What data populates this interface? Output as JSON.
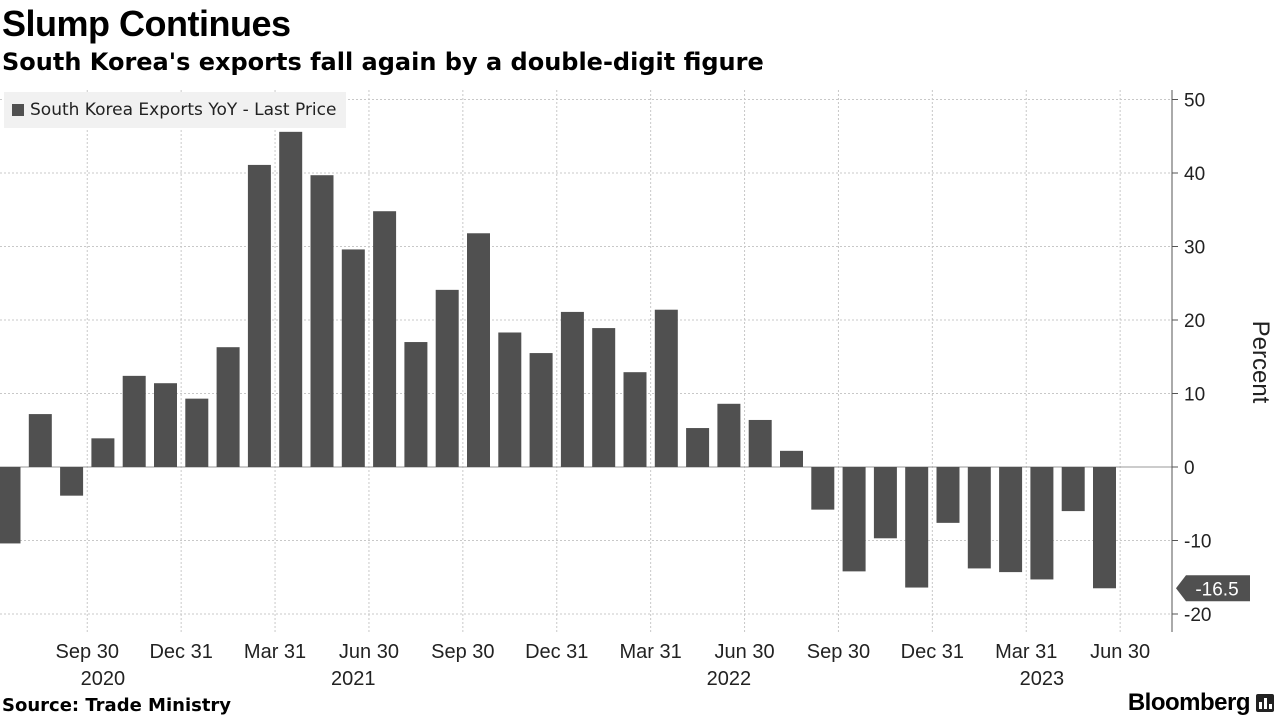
{
  "title": "Slump Continues",
  "subtitle": "South Korea's exports fall again by a double-digit figure",
  "source": "Source: Trade Ministry",
  "brand": "Bloomberg",
  "colors": {
    "bar": "#505050",
    "grid": "#c8c8c8",
    "axis": "#555555",
    "callout": "#505050"
  },
  "chart_data": {
    "type": "bar",
    "ylabel": "Percent",
    "ylim": [
      -22,
      52
    ],
    "yticks": [
      50,
      40,
      30,
      20,
      10,
      0,
      -10,
      -20
    ],
    "y_axis_position": "right",
    "grid": true,
    "legend": "top-left",
    "series": [
      {
        "name": "South Korea Exports YoY - Last Price",
        "values": [
          -10.4,
          7.2,
          -3.9,
          3.9,
          12.4,
          11.4,
          9.3,
          16.3,
          41.1,
          45.6,
          39.7,
          29.6,
          34.8,
          17.0,
          24.1,
          31.8,
          18.3,
          15.5,
          21.1,
          18.9,
          12.9,
          21.4,
          5.3,
          8.6,
          6.4,
          2.2,
          -5.8,
          -14.2,
          -9.7,
          -16.4,
          -7.6,
          -13.8,
          -14.3,
          -15.3,
          -6.0,
          -16.5
        ]
      }
    ],
    "x_tick_labels": [
      "Sep 30",
      "Dec 31",
      "Mar 31",
      "Jun 30",
      "Sep 30",
      "Dec 31",
      "Mar 31",
      "Jun 30",
      "Sep 30",
      "Dec 31",
      "Mar 31",
      "Jun 30"
    ],
    "x_tick_bar_index": [
      2,
      5,
      8,
      11,
      14,
      17,
      20,
      23,
      26,
      29,
      32,
      35
    ],
    "x_year_labels": [
      "2020",
      "2021",
      "2022",
      "2023"
    ],
    "x_year_bar_index": [
      3,
      11,
      23,
      33
    ],
    "last_value_label": "-16.5"
  }
}
